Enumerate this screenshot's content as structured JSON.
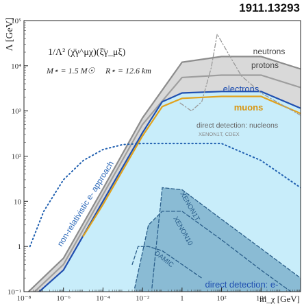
{
  "header": {
    "arxiv_id": "1911.13293"
  },
  "chart_data": {
    "type": "area",
    "xlabel": "m_χ [GeV]",
    "ylabel": "Λ [GeV]",
    "xscale": "log",
    "yscale": "log",
    "xlim": [
      1e-08,
      1000000.0
    ],
    "ylim": [
      0.1,
      100000.0
    ],
    "x_ticks": [
      "10⁻⁸",
      "10⁻⁶",
      "10⁻⁴",
      "10⁻²",
      "1",
      "10²",
      "10⁴"
    ],
    "y_ticks": [
      "10⁻¹",
      "1",
      "10",
      "10²",
      "10³",
      "10⁴",
      "10⁵"
    ],
    "annotations": {
      "operator": "1/Λ² (χ̄γ^μχ)(ξ̄γ_μξ)",
      "star_mass": "M⋆ = 1.5 M☉",
      "star_radius": "R⋆ = 12.6 km"
    },
    "series": [
      {
        "name": "neutrons",
        "color": "#8c8c8c",
        "style": "solid",
        "x": [
          1e-08,
          1e-06,
          0.0001,
          0.01,
          1,
          100,
          10000.0,
          1000000.0
        ],
        "y": [
          0.08,
          0.55,
          19,
          700,
          12000,
          16000,
          16000,
          8500
        ]
      },
      {
        "name": "protons",
        "color": "#9e9e9e",
        "style": "solid",
        "x": [
          1e-08,
          1e-06,
          0.0001,
          0.01,
          1,
          100,
          10000.0,
          1000000.0
        ],
        "y": [
          0.06,
          0.4,
          14,
          500,
          5500,
          6200,
          6200,
          3300
        ]
      },
      {
        "name": "electrons",
        "color": "#1f4fb0",
        "style": "solid",
        "x": [
          1e-08,
          1e-06,
          0.0001,
          0.01,
          0.1,
          1,
          100,
          10000.0,
          1000000.0
        ],
        "y": [
          0.05,
          0.3,
          10,
          330,
          1600,
          2500,
          2700,
          2700,
          1150
        ]
      },
      {
        "name": "muons",
        "color": "#e1a21c",
        "style": "solid",
        "x": [
          1e-05,
          0.0001,
          0.01,
          0.1,
          1,
          100,
          10000.0,
          1000000.0
        ],
        "y": [
          1.7,
          8.5,
          280,
          1250,
          1900,
          2100,
          2100,
          880
        ]
      },
      {
        "name": "direct detection: nucleons",
        "note": "XENON1T, CDEX",
        "color": "#999999",
        "style": "dashdot",
        "x": [
          0.8,
          3,
          10,
          30,
          60,
          200,
          1000,
          10000.0,
          1000000.0
        ],
        "y": [
          1500,
          1000,
          1600,
          9000,
          50000,
          20000,
          6000,
          2500,
          800
        ]
      },
      {
        "name": "non-relativistic e- approach",
        "color": "#1f5fb0",
        "style": "dotted",
        "x": [
          2e-08,
          1e-07,
          1e-06,
          1e-05,
          0.0001,
          0.001,
          0.01,
          1,
          100,
          10000.0,
          1000000.0
        ],
        "y": [
          1,
          6,
          30,
          80,
          140,
          180,
          190,
          190,
          190,
          80,
          20
        ]
      },
      {
        "name": "XENON1T",
        "color": "#2a5e8a",
        "style": "dashed",
        "x": [
          0.03,
          0.1,
          1,
          100,
          10000.0,
          1000000.0
        ],
        "y": [
          0.12,
          20,
          18,
          4,
          0.9,
          0.2
        ]
      },
      {
        "name": "XENON10",
        "color": "#2a5e8a",
        "style": "dashed",
        "x": [
          0.004,
          0.02,
          0.1,
          1,
          100,
          10000.0,
          1000000.0
        ],
        "y": [
          0.12,
          3,
          6,
          6,
          1.4,
          0.3,
          0.07
        ]
      },
      {
        "name": "DAMIC",
        "color": "#2a5e8a",
        "style": "dashed",
        "x": [
          0.003,
          0.006,
          0.02,
          0.1,
          1,
          10
        ],
        "y": [
          0.4,
          1,
          1,
          0.8,
          0.4,
          0.2
        ]
      }
    ],
    "regions": [
      {
        "name": "direct detection: e-",
        "color": "#6fa8c8"
      }
    ],
    "colors": {
      "fill_light": "#cbeefb",
      "fill_dark": "#7db3cf",
      "fill_gray": "#d6d6d6"
    }
  }
}
